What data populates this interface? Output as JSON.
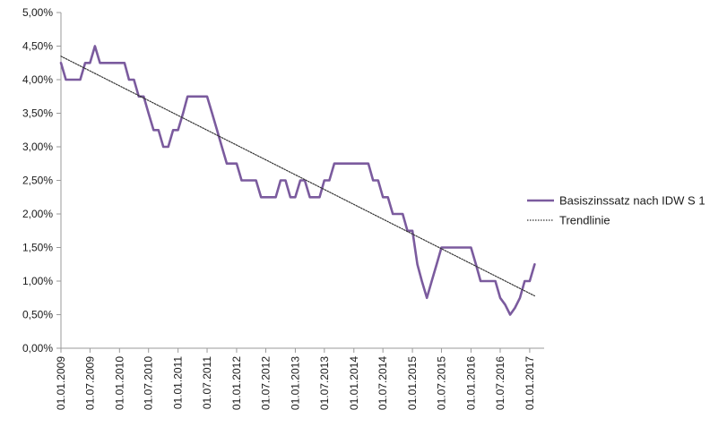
{
  "chart_data": {
    "type": "line",
    "title": "",
    "xlabel": "",
    "ylabel": "",
    "ylim": [
      0,
      5
    ],
    "y_ticks": [
      "0,00%",
      "0,50%",
      "1,00%",
      "1,50%",
      "2,00%",
      "2,50%",
      "3,00%",
      "3,50%",
      "4,00%",
      "4,50%",
      "5,00%"
    ],
    "x_ticks": [
      "01.01.2009",
      "01.07.2009",
      "01.01.2010",
      "01.07.2010",
      "01.01.2011",
      "01.07.2011",
      "01.01.2012",
      "01.07.2012",
      "01.01.2013",
      "01.07.2013",
      "01.01.2014",
      "01.07.2014",
      "01.01.2015",
      "01.07.2015",
      "01.01.2016",
      "01.07.2016",
      "01.01.2017"
    ],
    "grid": false,
    "legend_position": "right",
    "series": [
      {
        "name": "Basiszinssatz nach IDW S 1",
        "color": "#7b5b9e",
        "style": "solid",
        "x": [
          "01.01.2009",
          "01.02.2009",
          "01.03.2009",
          "01.04.2009",
          "01.05.2009",
          "01.06.2009",
          "01.07.2009",
          "01.08.2009",
          "01.09.2009",
          "01.10.2009",
          "01.11.2009",
          "01.12.2009",
          "01.01.2010",
          "01.02.2010",
          "01.03.2010",
          "01.04.2010",
          "01.05.2010",
          "01.06.2010",
          "01.07.2010",
          "01.08.2010",
          "01.09.2010",
          "01.10.2010",
          "01.11.2010",
          "01.12.2010",
          "01.01.2011",
          "01.02.2011",
          "01.03.2011",
          "01.04.2011",
          "01.05.2011",
          "01.06.2011",
          "01.07.2011",
          "01.08.2011",
          "01.09.2011",
          "01.10.2011",
          "01.11.2011",
          "01.12.2011",
          "01.01.2012",
          "01.02.2012",
          "01.03.2012",
          "01.04.2012",
          "01.05.2012",
          "01.06.2012",
          "01.07.2012",
          "01.08.2012",
          "01.09.2012",
          "01.10.2012",
          "01.11.2012",
          "01.12.2012",
          "01.01.2013",
          "01.02.2013",
          "01.03.2013",
          "01.04.2013",
          "01.05.2013",
          "01.06.2013",
          "01.07.2013",
          "01.08.2013",
          "01.09.2013",
          "01.10.2013",
          "01.11.2013",
          "01.12.2013",
          "01.01.2014",
          "01.02.2014",
          "01.03.2014",
          "01.04.2014",
          "01.05.2014",
          "01.06.2014",
          "01.07.2014",
          "01.08.2014",
          "01.09.2014",
          "01.10.2014",
          "01.11.2014",
          "01.12.2014",
          "01.01.2015",
          "01.02.2015",
          "01.03.2015",
          "01.04.2015",
          "01.05.2015",
          "01.06.2015",
          "01.07.2015",
          "01.08.2015",
          "01.09.2015",
          "01.10.2015",
          "01.11.2015",
          "01.12.2015",
          "01.01.2016",
          "01.02.2016",
          "01.03.2016",
          "01.04.2016",
          "01.05.2016",
          "01.06.2016",
          "01.07.2016",
          "01.08.2016",
          "01.09.2016",
          "01.10.2016",
          "01.11.2016",
          "01.12.2016",
          "01.01.2017",
          "01.02.2017"
        ],
        "values": [
          4.25,
          4.0,
          4.0,
          4.0,
          4.0,
          4.25,
          4.25,
          4.5,
          4.25,
          4.25,
          4.25,
          4.25,
          4.25,
          4.25,
          4.0,
          4.0,
          3.75,
          3.75,
          3.5,
          3.25,
          3.25,
          3.0,
          3.0,
          3.25,
          3.25,
          3.5,
          3.75,
          3.75,
          3.75,
          3.75,
          3.75,
          3.5,
          3.25,
          3.0,
          2.75,
          2.75,
          2.75,
          2.5,
          2.5,
          2.5,
          2.5,
          2.25,
          2.25,
          2.25,
          2.25,
          2.5,
          2.5,
          2.25,
          2.25,
          2.5,
          2.5,
          2.25,
          2.25,
          2.25,
          2.5,
          2.5,
          2.75,
          2.75,
          2.75,
          2.75,
          2.75,
          2.75,
          2.75,
          2.75,
          2.5,
          2.5,
          2.25,
          2.25,
          2.0,
          2.0,
          2.0,
          1.75,
          1.75,
          1.25,
          1.0,
          0.75,
          1.0,
          1.25,
          1.5,
          1.5,
          1.5,
          1.5,
          1.5,
          1.5,
          1.5,
          1.25,
          1.0,
          1.0,
          1.0,
          1.0,
          0.75,
          0.65,
          0.5,
          0.6,
          0.75,
          1.0,
          1.0,
          1.25
        ]
      },
      {
        "name": "Trendlinie",
        "color": "#333333",
        "style": "dotted",
        "x": [
          "01.01.2009",
          "01.02.2017"
        ],
        "values": [
          4.35,
          0.78
        ]
      }
    ]
  }
}
